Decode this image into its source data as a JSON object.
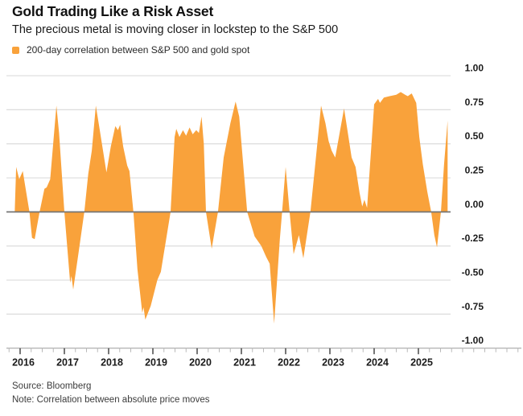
{
  "header": {
    "title": "Gold Trading Like a Risk Asset",
    "subtitle": "The precious metal is moving closer in lockstep to the S&P 500"
  },
  "legend": {
    "label": "200-day correlation between S&P 500 and gold spot",
    "swatch_color": "#F9A23B"
  },
  "footer": {
    "source": "Source: Bloomberg",
    "note": "Note: Correlation between absolute price moves"
  },
  "chart_data": {
    "type": "area",
    "title": "Gold Trading Like a Risk Asset",
    "series_label": "200-day correlation between S&P 500 and gold spot",
    "x_unit": "year (decimal)",
    "ylim": [
      -1.0,
      1.0
    ],
    "x_data_range": [
      2015.88,
      2025.66
    ],
    "grid": true,
    "legend_position": "top-left",
    "baseline": 0,
    "yticks": [
      {
        "v": 1.0,
        "label": "1.00"
      },
      {
        "v": 0.75,
        "label": "0.75"
      },
      {
        "v": 0.5,
        "label": "0.50"
      },
      {
        "v": 0.25,
        "label": "0.25"
      },
      {
        "v": 0.0,
        "label": "0.00"
      },
      {
        "v": -0.25,
        "label": "-0.25"
      },
      {
        "v": -0.5,
        "label": "-0.50"
      },
      {
        "v": -0.75,
        "label": "-0.75"
      },
      {
        "v": -1.0,
        "label": "-1.00"
      }
    ],
    "xticks": [
      {
        "v": 2016,
        "label": "2016"
      },
      {
        "v": 2017,
        "label": "2017"
      },
      {
        "v": 2018,
        "label": "2018"
      },
      {
        "v": 2019,
        "label": "2019"
      },
      {
        "v": 2020,
        "label": "2020"
      },
      {
        "v": 2021,
        "label": "2021"
      },
      {
        "v": 2022,
        "label": "2022"
      },
      {
        "v": 2023,
        "label": "2023"
      },
      {
        "v": 2024,
        "label": "2024"
      },
      {
        "v": 2025,
        "label": "2025"
      }
    ],
    "points": [
      [
        2015.88,
        0.02
      ],
      [
        2015.91,
        0.33
      ],
      [
        2015.98,
        0.24
      ],
      [
        2016.06,
        0.3
      ],
      [
        2016.12,
        0.18
      ],
      [
        2016.21,
        0.0
      ],
      [
        2016.27,
        -0.19
      ],
      [
        2016.33,
        -0.2
      ],
      [
        2016.44,
        0.0
      ],
      [
        2016.55,
        0.17
      ],
      [
        2016.6,
        0.18
      ],
      [
        2016.68,
        0.24
      ],
      [
        2016.76,
        0.55
      ],
      [
        2016.82,
        0.78
      ],
      [
        2016.88,
        0.58
      ],
      [
        2017.0,
        0.0
      ],
      [
        2017.13,
        -0.52
      ],
      [
        2017.16,
        -0.47
      ],
      [
        2017.2,
        -0.57
      ],
      [
        2017.32,
        -0.3
      ],
      [
        2017.45,
        0.0
      ],
      [
        2017.54,
        0.28
      ],
      [
        2017.62,
        0.45
      ],
      [
        2017.71,
        0.78
      ],
      [
        2017.8,
        0.6
      ],
      [
        2017.95,
        0.29
      ],
      [
        2018.05,
        0.48
      ],
      [
        2018.15,
        0.63
      ],
      [
        2018.21,
        0.6
      ],
      [
        2018.26,
        0.64
      ],
      [
        2018.33,
        0.48
      ],
      [
        2018.42,
        0.34
      ],
      [
        2018.47,
        0.3
      ],
      [
        2018.56,
        0.0
      ],
      [
        2018.65,
        -0.42
      ],
      [
        2018.76,
        -0.74
      ],
      [
        2018.79,
        -0.7
      ],
      [
        2018.83,
        -0.79
      ],
      [
        2018.95,
        -0.69
      ],
      [
        2019.1,
        -0.5
      ],
      [
        2019.18,
        -0.44
      ],
      [
        2019.4,
        0.0
      ],
      [
        2019.49,
        0.55
      ],
      [
        2019.53,
        0.61
      ],
      [
        2019.6,
        0.55
      ],
      [
        2019.68,
        0.6
      ],
      [
        2019.75,
        0.56
      ],
      [
        2019.83,
        0.62
      ],
      [
        2019.9,
        0.57
      ],
      [
        2019.98,
        0.6
      ],
      [
        2020.04,
        0.58
      ],
      [
        2020.1,
        0.7
      ],
      [
        2020.15,
        0.5
      ],
      [
        2020.2,
        0.0
      ],
      [
        2020.33,
        -0.27
      ],
      [
        2020.47,
        0.0
      ],
      [
        2020.6,
        0.4
      ],
      [
        2020.75,
        0.65
      ],
      [
        2020.87,
        0.81
      ],
      [
        2020.95,
        0.7
      ],
      [
        2021.13,
        0.0
      ],
      [
        2021.3,
        -0.18
      ],
      [
        2021.45,
        -0.25
      ],
      [
        2021.56,
        -0.33
      ],
      [
        2021.64,
        -0.38
      ],
      [
        2021.74,
        -0.82
      ],
      [
        2021.87,
        -0.2
      ],
      [
        2021.92,
        0.0
      ],
      [
        2022.0,
        0.33
      ],
      [
        2022.09,
        0.0
      ],
      [
        2022.18,
        -0.31
      ],
      [
        2022.3,
        -0.17
      ],
      [
        2022.4,
        -0.34
      ],
      [
        2022.56,
        0.0
      ],
      [
        2022.7,
        0.45
      ],
      [
        2022.8,
        0.78
      ],
      [
        2022.9,
        0.65
      ],
      [
        2022.97,
        0.52
      ],
      [
        2023.04,
        0.45
      ],
      [
        2023.12,
        0.4
      ],
      [
        2023.22,
        0.58
      ],
      [
        2023.32,
        0.76
      ],
      [
        2023.42,
        0.55
      ],
      [
        2023.49,
        0.4
      ],
      [
        2023.58,
        0.33
      ],
      [
        2023.67,
        0.14
      ],
      [
        2023.73,
        0.04
      ],
      [
        2023.78,
        0.09
      ],
      [
        2023.84,
        0.03
      ],
      [
        2023.95,
        0.55
      ],
      [
        2024.0,
        0.79
      ],
      [
        2024.09,
        0.83
      ],
      [
        2024.13,
        0.8
      ],
      [
        2024.22,
        0.84
      ],
      [
        2024.35,
        0.85
      ],
      [
        2024.5,
        0.86
      ],
      [
        2024.6,
        0.88
      ],
      [
        2024.7,
        0.86
      ],
      [
        2024.76,
        0.85
      ],
      [
        2024.85,
        0.87
      ],
      [
        2024.95,
        0.8
      ],
      [
        2025.02,
        0.55
      ],
      [
        2025.1,
        0.35
      ],
      [
        2025.2,
        0.15
      ],
      [
        2025.29,
        0.0
      ],
      [
        2025.36,
        -0.17
      ],
      [
        2025.42,
        -0.26
      ],
      [
        2025.51,
        0.0
      ],
      [
        2025.58,
        0.35
      ],
      [
        2025.66,
        0.67
      ]
    ],
    "colors": {
      "area": "#F9A23B",
      "grid": "#DCDCDC",
      "zero_line": "#757575",
      "axis_line": "#9B9B9B",
      "tick_major": "#3C3C3C",
      "tick_minor": "#B8B8B8",
      "label_text": "#1A1A1A"
    }
  }
}
